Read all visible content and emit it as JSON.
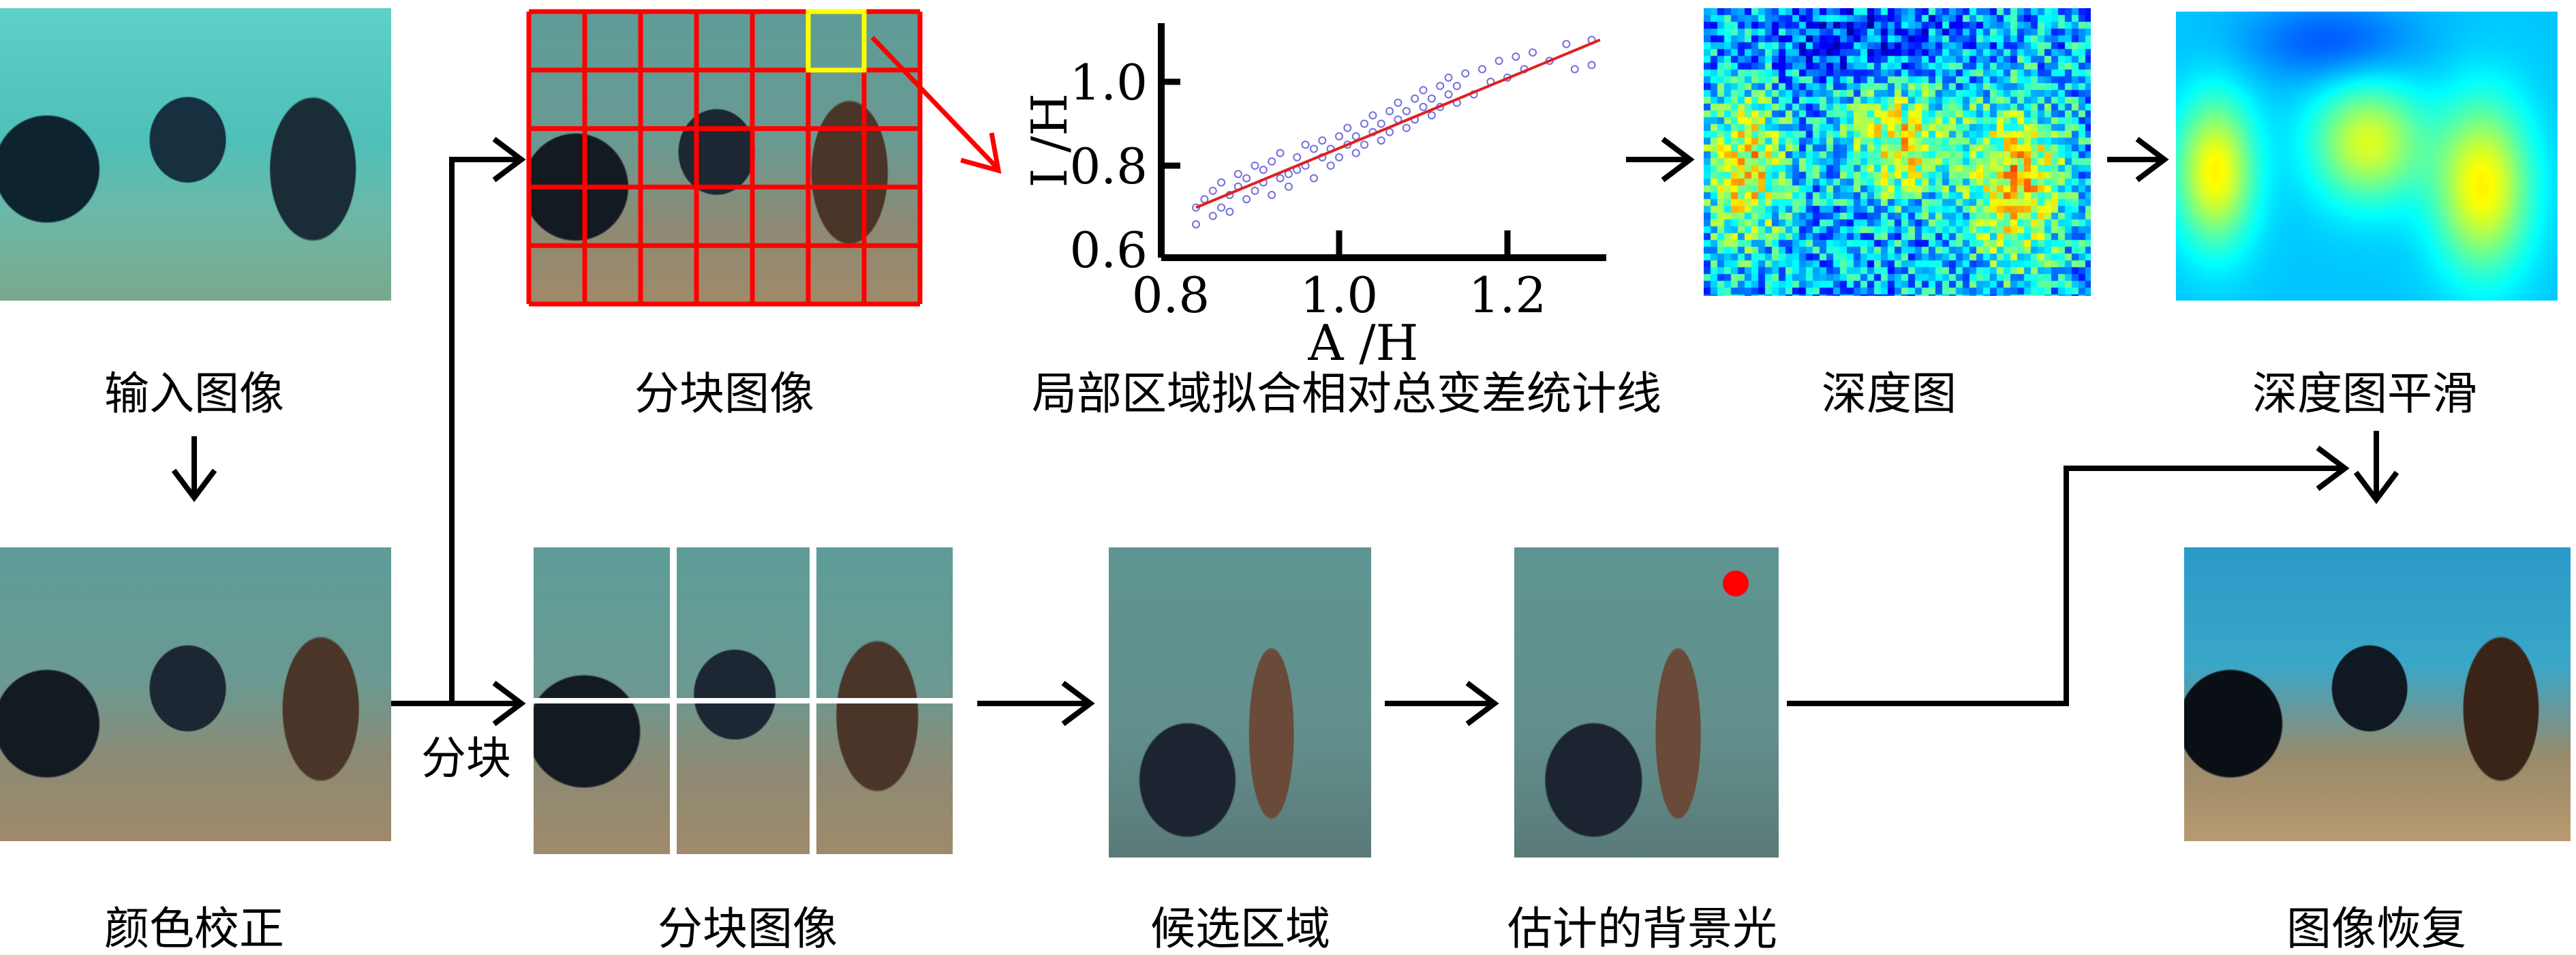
{
  "labels": {
    "input_image": "输入图像",
    "color_correction": "颜色校正",
    "block_image_top": "分块图像",
    "block_image_bottom": "分块图像",
    "blocking_step": "分块",
    "local_fit": "局部区域拟合相对总变差统计线",
    "depth_map": "深度图",
    "depth_smoothing": "深度图平滑",
    "candidate_region": "候选区域",
    "estimated_background_light": "估计的背景光",
    "image_restoration": "图像恢复"
  },
  "grid": {
    "columns": 7,
    "rows": 5,
    "grid_color": "#ff0000",
    "selected_block_color": "#ffff00",
    "selected_block": {
      "column": 6,
      "row": 1
    }
  },
  "split": {
    "columns": 3,
    "rows": 2
  },
  "background_light_marker_color": "#ff0000",
  "chart_data": {
    "type": "scatter",
    "xlabel": "A /H",
    "ylabel": "I /H",
    "xlim": [
      0.8,
      1.32
    ],
    "ylim": [
      0.6,
      1.12
    ],
    "xticks": [
      "0.8",
      "1.0",
      "1.2"
    ],
    "yticks": [
      "0.6",
      "0.8",
      "1.0"
    ],
    "point_color": "#3333cc",
    "fit_line_color": "#e02020",
    "fit_line": [
      [
        0.83,
        0.7
      ],
      [
        1.31,
        1.1
      ]
    ],
    "points": [
      [
        0.83,
        0.66
      ],
      [
        0.83,
        0.7
      ],
      [
        0.84,
        0.72
      ],
      [
        0.85,
        0.68
      ],
      [
        0.85,
        0.74
      ],
      [
        0.86,
        0.7
      ],
      [
        0.86,
        0.76
      ],
      [
        0.87,
        0.69
      ],
      [
        0.87,
        0.73
      ],
      [
        0.88,
        0.75
      ],
      [
        0.88,
        0.78
      ],
      [
        0.89,
        0.72
      ],
      [
        0.89,
        0.77
      ],
      [
        0.9,
        0.74
      ],
      [
        0.9,
        0.8
      ],
      [
        0.91,
        0.76
      ],
      [
        0.91,
        0.79
      ],
      [
        0.92,
        0.73
      ],
      [
        0.92,
        0.81
      ],
      [
        0.93,
        0.77
      ],
      [
        0.93,
        0.83
      ],
      [
        0.94,
        0.78
      ],
      [
        0.94,
        0.75
      ],
      [
        0.95,
        0.82
      ],
      [
        0.95,
        0.79
      ],
      [
        0.96,
        0.85
      ],
      [
        0.96,
        0.8
      ],
      [
        0.97,
        0.77
      ],
      [
        0.97,
        0.84
      ],
      [
        0.98,
        0.82
      ],
      [
        0.98,
        0.86
      ],
      [
        0.99,
        0.8
      ],
      [
        0.99,
        0.84
      ],
      [
        1.0,
        0.87
      ],
      [
        1.0,
        0.82
      ],
      [
        1.01,
        0.85
      ],
      [
        1.01,
        0.89
      ],
      [
        1.02,
        0.83
      ],
      [
        1.02,
        0.87
      ],
      [
        1.03,
        0.9
      ],
      [
        1.03,
        0.85
      ],
      [
        1.04,
        0.88
      ],
      [
        1.04,
        0.92
      ],
      [
        1.05,
        0.86
      ],
      [
        1.05,
        0.9
      ],
      [
        1.06,
        0.93
      ],
      [
        1.06,
        0.88
      ],
      [
        1.07,
        0.91
      ],
      [
        1.07,
        0.95
      ],
      [
        1.08,
        0.89
      ],
      [
        1.08,
        0.93
      ],
      [
        1.09,
        0.96
      ],
      [
        1.09,
        0.91
      ],
      [
        1.1,
        0.94
      ],
      [
        1.1,
        0.98
      ],
      [
        1.11,
        0.92
      ],
      [
        1.11,
        0.96
      ],
      [
        1.12,
        0.99
      ],
      [
        1.12,
        0.94
      ],
      [
        1.13,
        0.97
      ],
      [
        1.13,
        1.01
      ],
      [
        1.14,
        0.95
      ],
      [
        1.14,
        0.99
      ],
      [
        1.15,
        1.02
      ],
      [
        1.16,
        0.97
      ],
      [
        1.17,
        1.03
      ],
      [
        1.18,
        1.0
      ],
      [
        1.19,
        1.05
      ],
      [
        1.2,
        1.01
      ],
      [
        1.21,
        1.06
      ],
      [
        1.22,
        1.03
      ],
      [
        1.23,
        1.07
      ],
      [
        1.25,
        1.05
      ],
      [
        1.27,
        1.09
      ],
      [
        1.28,
        1.03
      ],
      [
        1.3,
        1.1
      ],
      [
        1.3,
        1.04
      ]
    ]
  }
}
